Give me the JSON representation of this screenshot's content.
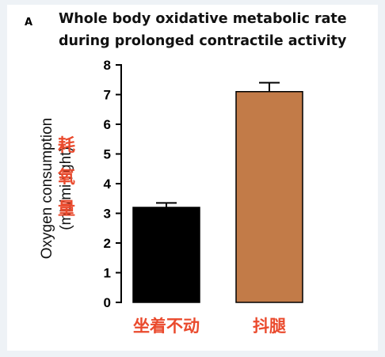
{
  "panel_label": "A",
  "chart_data": {
    "type": "bar",
    "title_lines": [
      "Whole body oxidative metabolic rate",
      "during prolonged contractile activity"
    ],
    "ylabel_lines": [
      "Oxygen consumption",
      "(mL/mi  ;ight)"
    ],
    "ylabel_overlay": [
      "耗",
      "氧",
      "量"
    ],
    "categories": [
      "坐着不动",
      "抖腿"
    ],
    "values": [
      3.2,
      7.1
    ],
    "errors": [
      0.15,
      0.3
    ],
    "colors": [
      "#000000",
      "#c27b48"
    ],
    "ylim": [
      0,
      8
    ],
    "yticks": [
      0,
      1,
      2,
      3,
      4,
      5,
      6,
      7,
      8
    ],
    "grid": false
  }
}
